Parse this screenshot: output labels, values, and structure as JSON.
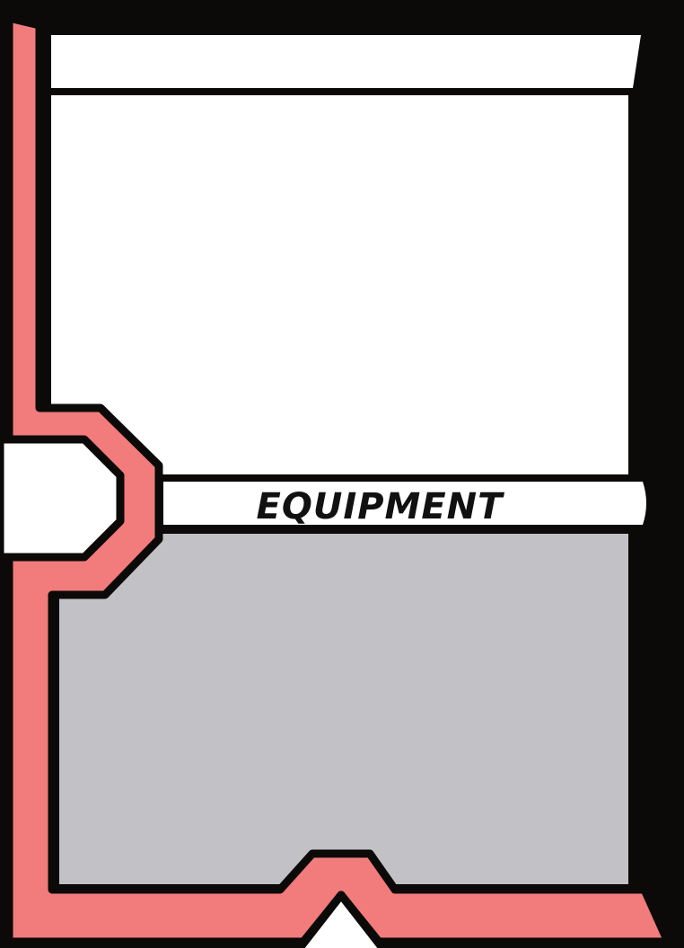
{
  "card": {
    "type_label": "EQUIPMENT",
    "title_text": "",
    "art_description": "",
    "rules_text": ""
  },
  "colors": {
    "frame": "#0b0a09",
    "accent": "#f27b7b",
    "panel": "#ffffff",
    "text_box": "#c2c1c5",
    "label_text": "#111111"
  }
}
